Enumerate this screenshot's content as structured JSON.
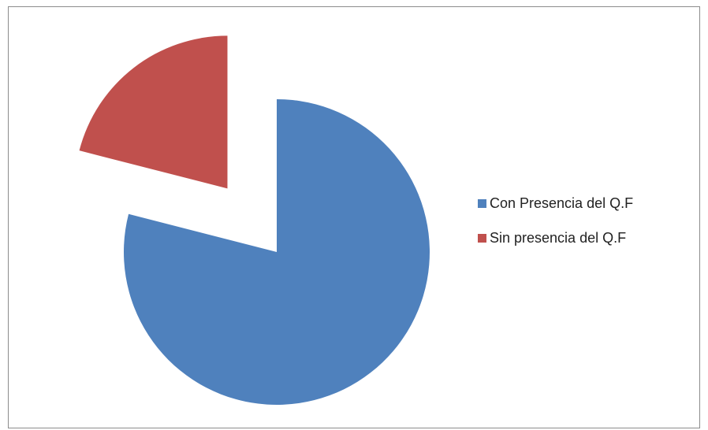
{
  "chart_data": {
    "type": "pie",
    "title": "",
    "categories": [
      "Con Presencia del Q.F",
      "Sin presencia del Q.F"
    ],
    "values": [
      79,
      21
    ],
    "colors": [
      "#4f81bd",
      "#c0504d"
    ],
    "exploded": [
      false,
      true
    ],
    "legend": "right"
  }
}
